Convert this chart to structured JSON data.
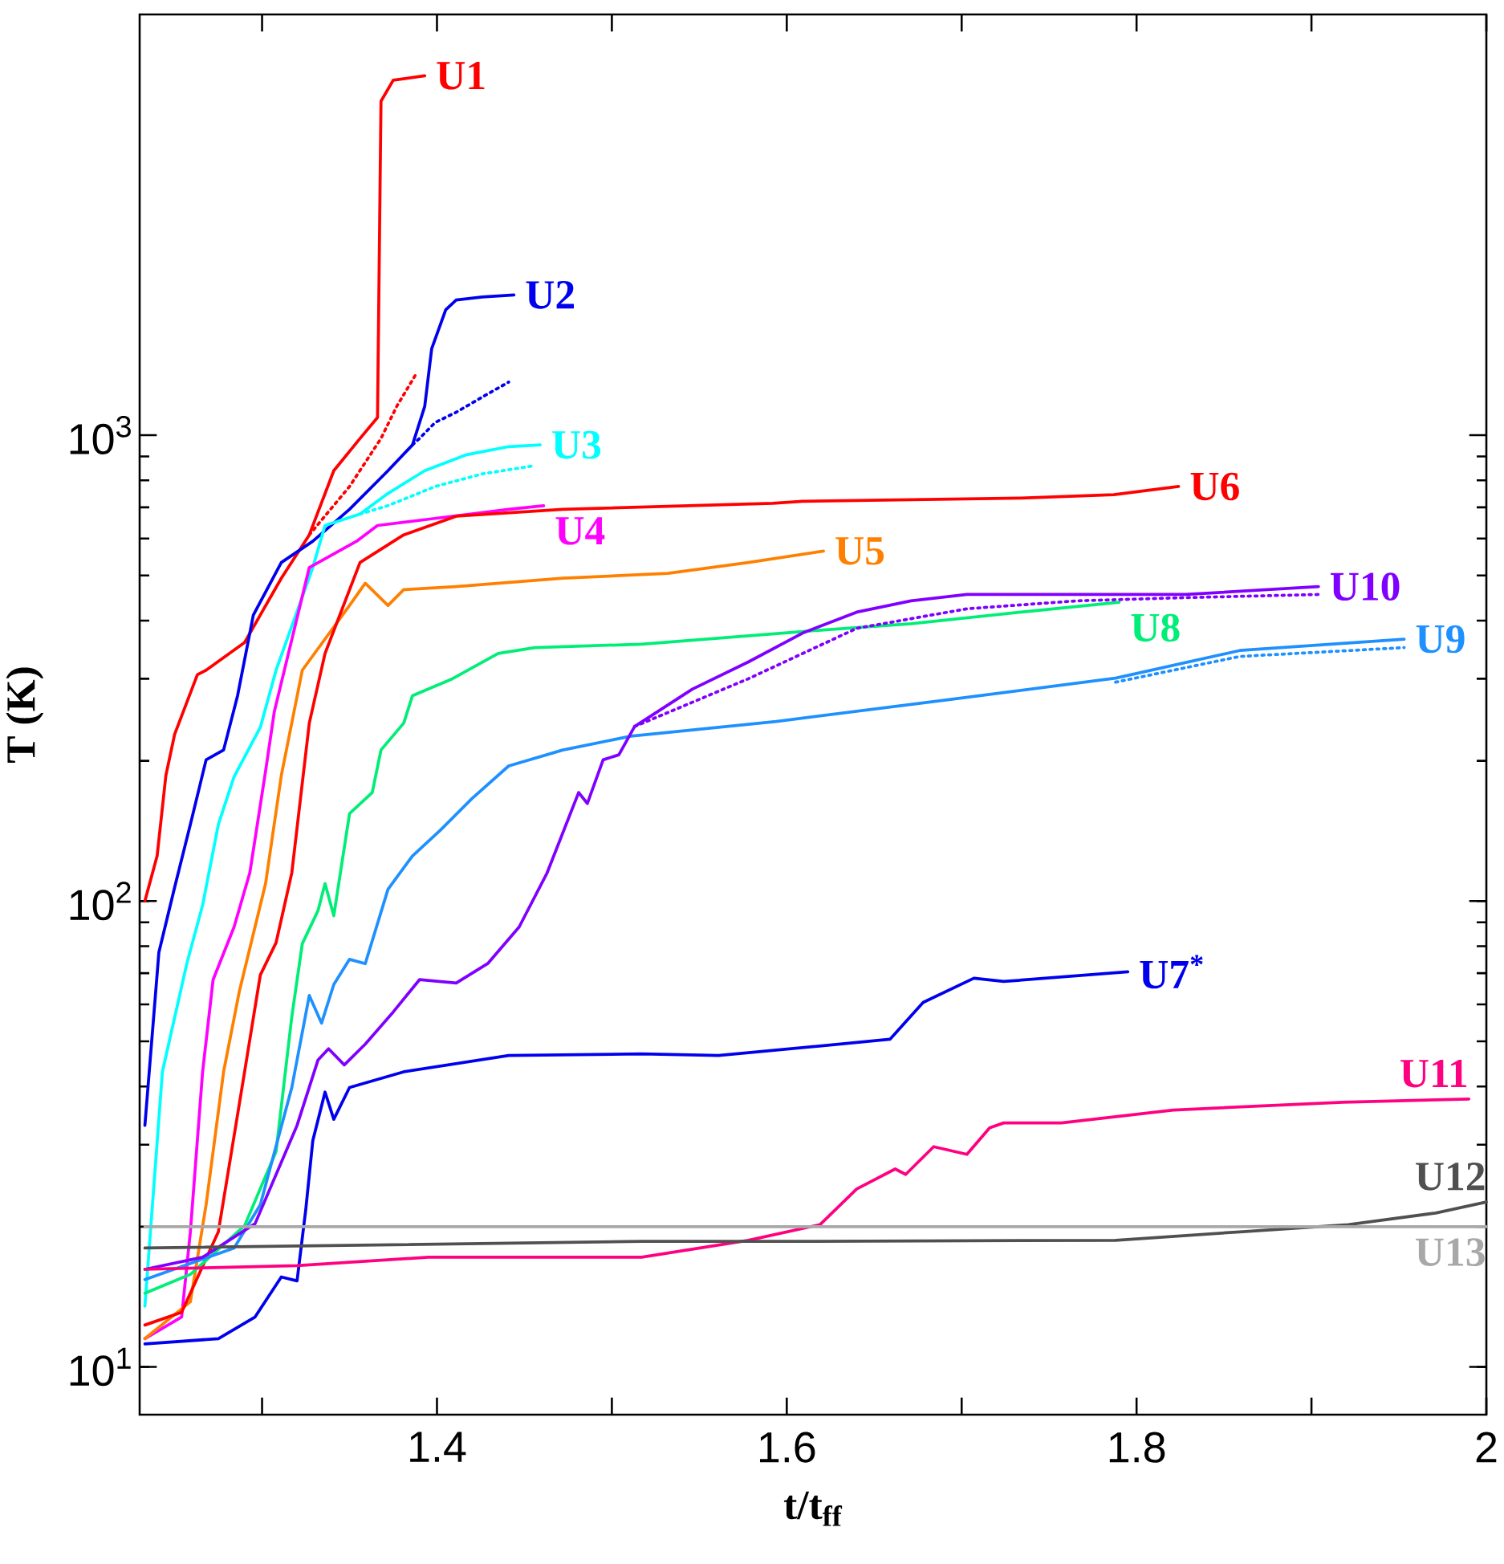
{
  "chart_data": {
    "type": "line",
    "xlabel": "t/t$_{ff}$",
    "ylabel": "T (K)",
    "log": "y",
    "xlim": [
      1.23,
      2.0
    ],
    "ylim": [
      7.9,
      8000
    ],
    "xticks": [
      {
        "value": 1.3,
        "label": null
      },
      1.4,
      {
        "value": 1.5,
        "label": null
      },
      1.6,
      {
        "value": 1.7,
        "label": null
      },
      1.8,
      {
        "value": 1.9,
        "label": null
      },
      2
    ],
    "yticks": [
      {
        "value": 10,
        "label": "10$^{1}$"
      },
      {
        "value": 100,
        "label": "10$^{2}$"
      },
      {
        "value": 1000,
        "label": "10$^{3}$"
      }
    ],
    "series": [
      {
        "name": "U1",
        "color": "#ff0000",
        "x": [
          1.233,
          1.24,
          1.245,
          1.25,
          1.263,
          1.268,
          1.29,
          1.311,
          1.327,
          1.341,
          1.356,
          1.366,
          1.368,
          1.375,
          1.393
        ],
        "values": [
          100,
          125,
          186,
          228,
          306,
          313,
          359,
          493,
          611,
          839,
          984,
          1091,
          5210,
          5780,
          5910
        ]
      },
      {
        "name": "U2",
        "color": "#0000ee",
        "x": [
          1.233,
          1.241,
          1.25,
          1.259,
          1.268,
          1.278,
          1.286,
          1.295,
          1.311,
          1.329,
          1.35,
          1.372,
          1.386,
          1.393,
          1.397,
          1.405,
          1.411,
          1.426,
          1.444
        ],
        "values": [
          33,
          77.6,
          107,
          146,
          201,
          211,
          276,
          411,
          533,
          592,
          693,
          839,
          953,
          1153,
          1535,
          1858,
          1950,
          1980,
          2000
        ]
      },
      {
        "name": "U3",
        "color": "#00ffff",
        "x": [
          1.233,
          1.243,
          1.257,
          1.266,
          1.275,
          1.284,
          1.299,
          1.308,
          1.329,
          1.336,
          1.356,
          1.372,
          1.393,
          1.417,
          1.441,
          1.459
        ],
        "values": [
          13.5,
          43,
          73.5,
          98,
          146,
          185,
          236,
          313,
          520,
          640,
          677,
          750,
          839,
          908,
          945,
          953
        ]
      },
      {
        "name": "U4",
        "color": "#ff00ff",
        "x": [
          1.233,
          1.254,
          1.259,
          1.266,
          1.272,
          1.284,
          1.293,
          1.302,
          1.307,
          1.327,
          1.354,
          1.366,
          1.395,
          1.441,
          1.461
        ],
        "values": [
          11.5,
          12.8,
          19.5,
          43,
          67.8,
          88,
          115,
          190,
          255,
          520,
          592,
          640,
          660,
          693,
          706
        ]
      },
      {
        "name": "U5",
        "color": "#ff8000",
        "x": [
          1.233,
          1.259,
          1.268,
          1.278,
          1.287,
          1.302,
          1.311,
          1.323,
          1.35,
          1.359,
          1.372,
          1.381,
          1.411,
          1.472,
          1.532,
          1.578,
          1.621
        ],
        "values": [
          11.5,
          13.8,
          22.3,
          43,
          64,
          109,
          186,
          313,
          431,
          481,
          431,
          466,
          473,
          493,
          505,
          533,
          564
        ]
      },
      {
        "name": "U6",
        "color": "#ff0000",
        "x": [
          1.233,
          1.254,
          1.275,
          1.29,
          1.299,
          1.308,
          1.317,
          1.327,
          1.336,
          1.356,
          1.381,
          1.411,
          1.472,
          1.592,
          1.609,
          1.734,
          1.787,
          1.824
        ],
        "values": [
          12.3,
          13.1,
          19.5,
          43,
          69.4,
          81.4,
          115,
          241,
          340,
          533,
          611,
          670,
          693,
          714,
          721,
          733,
          745,
          776
        ]
      },
      {
        "name": "U7$^{*}$",
        "color": "#0000ee",
        "x": [
          1.233,
          1.275,
          1.296,
          1.311,
          1.32,
          1.325,
          1.329,
          1.336,
          1.341,
          1.35,
          1.381,
          1.441,
          1.517,
          1.561,
          1.659,
          1.678,
          1.707,
          1.724,
          1.795
        ],
        "values": [
          11.2,
          11.5,
          12.8,
          15.6,
          15.3,
          21.8,
          30.6,
          38.9,
          34.0,
          39.8,
          43,
          46.6,
          47,
          46.6,
          50.5,
          60.6,
          68.3,
          67.2,
          70.5
        ]
      },
      {
        "name": "U8",
        "color": "#00ee77",
        "x": [
          1.233,
          1.259,
          1.29,
          1.308,
          1.317,
          1.323,
          1.332,
          1.336,
          1.341,
          1.35,
          1.363,
          1.368,
          1.381,
          1.386,
          1.408,
          1.435,
          1.456,
          1.517,
          1.609,
          1.671,
          1.734,
          1.79
        ],
        "values": [
          14.4,
          15.8,
          20.1,
          29,
          56.5,
          81,
          95.4,
          109,
          93,
          154,
          171,
          211,
          241,
          276,
          299,
          340,
          350,
          356,
          379,
          394,
          417,
          438
        ]
      },
      {
        "name": "U9",
        "color": "#1e90ff",
        "x": [
          1.233,
          1.284,
          1.299,
          1.317,
          1.327,
          1.334,
          1.341,
          1.35,
          1.359,
          1.372,
          1.386,
          1.402,
          1.42,
          1.441,
          1.472,
          1.511,
          1.594,
          1.691,
          1.788,
          1.859,
          1.953
        ],
        "values": [
          15.4,
          18.0,
          22.3,
          39.8,
          62.7,
          54.7,
          66.2,
          75,
          73.4,
          106,
          125,
          142,
          166,
          195,
          211,
          226,
          243,
          270,
          301,
          345,
          365
        ]
      },
      {
        "name": "U10",
        "color": "#8000ff",
        "x": [
          1.233,
          1.266,
          1.296,
          1.32,
          1.332,
          1.338,
          1.347,
          1.359,
          1.375,
          1.39,
          1.411,
          1.429,
          1.447,
          1.463,
          1.481,
          1.486,
          1.495,
          1.504,
          1.513,
          1.546,
          1.578,
          1.609,
          1.64,
          1.671,
          1.703,
          1.766,
          1.828,
          1.904
        ],
        "values": [
          16.2,
          17.2,
          20.3,
          33,
          45.6,
          48.2,
          44.5,
          49.3,
          57.8,
          67.8,
          66.7,
          73.4,
          88,
          115,
          171,
          162,
          201,
          206,
          237,
          285,
          326,
          376,
          417,
          441,
          455,
          455,
          455,
          473
        ]
      },
      {
        "name": "U11",
        "color": "#ff0080",
        "x": [
          1.233,
          1.32,
          1.395,
          1.517,
          1.578,
          1.619,
          1.64,
          1.662,
          1.668,
          1.684,
          1.703,
          1.716,
          1.724,
          1.757,
          1.821,
          1.918,
          1.99
        ],
        "values": [
          16.2,
          16.5,
          17.2,
          17.2,
          18.7,
          20.2,
          24.1,
          26.6,
          25.9,
          29.7,
          28.6,
          32.6,
          33.4,
          33.4,
          35.6,
          37,
          37.6
        ]
      },
      {
        "name": "U12",
        "color": "#505050",
        "x": [
          1.233,
          1.517,
          1.6,
          1.788,
          1.859,
          1.921,
          1.971,
          2.0
        ],
        "values": [
          18,
          18.6,
          18.6,
          18.7,
          19.5,
          20.2,
          21.4,
          22.6
        ]
      },
      {
        "name": "U13",
        "color": "#a8a8a8",
        "x": [
          1.233,
          2.0
        ],
        "values": [
          20,
          20
        ]
      },
      {
        "color": "#ff0000",
        "line_style": "dotted",
        "x": [
          1.327,
          1.35,
          1.368,
          1.377,
          1.388
        ],
        "values": [
          611,
          776,
          984,
          1153,
          1352
        ]
      },
      {
        "color": "#0000ee",
        "line_style": "dotted",
        "x": [
          1.386,
          1.39,
          1.399,
          1.411,
          1.426,
          1.441
        ],
        "values": [
          953,
          984,
          1065,
          1120,
          1208,
          1300
        ]
      },
      {
        "color": "#00ffff",
        "line_style": "dotted",
        "x": [
          1.356,
          1.372,
          1.399,
          1.426,
          1.454
        ],
        "values": [
          677,
          706,
          776,
          826,
          858
        ]
      },
      {
        "color": "#8000ff",
        "line_style": "dotted",
        "x": [
          1.513,
          1.578,
          1.64,
          1.703,
          1.766,
          1.828,
          1.904
        ],
        "values": [
          237,
          300,
          385,
          424,
          441,
          448,
          455
        ]
      },
      {
        "color": "#1e90ff",
        "line_style": "dotted",
        "x": [
          1.788,
          1.859,
          1.953
        ],
        "values": [
          295,
          335,
          350
        ]
      }
    ]
  }
}
